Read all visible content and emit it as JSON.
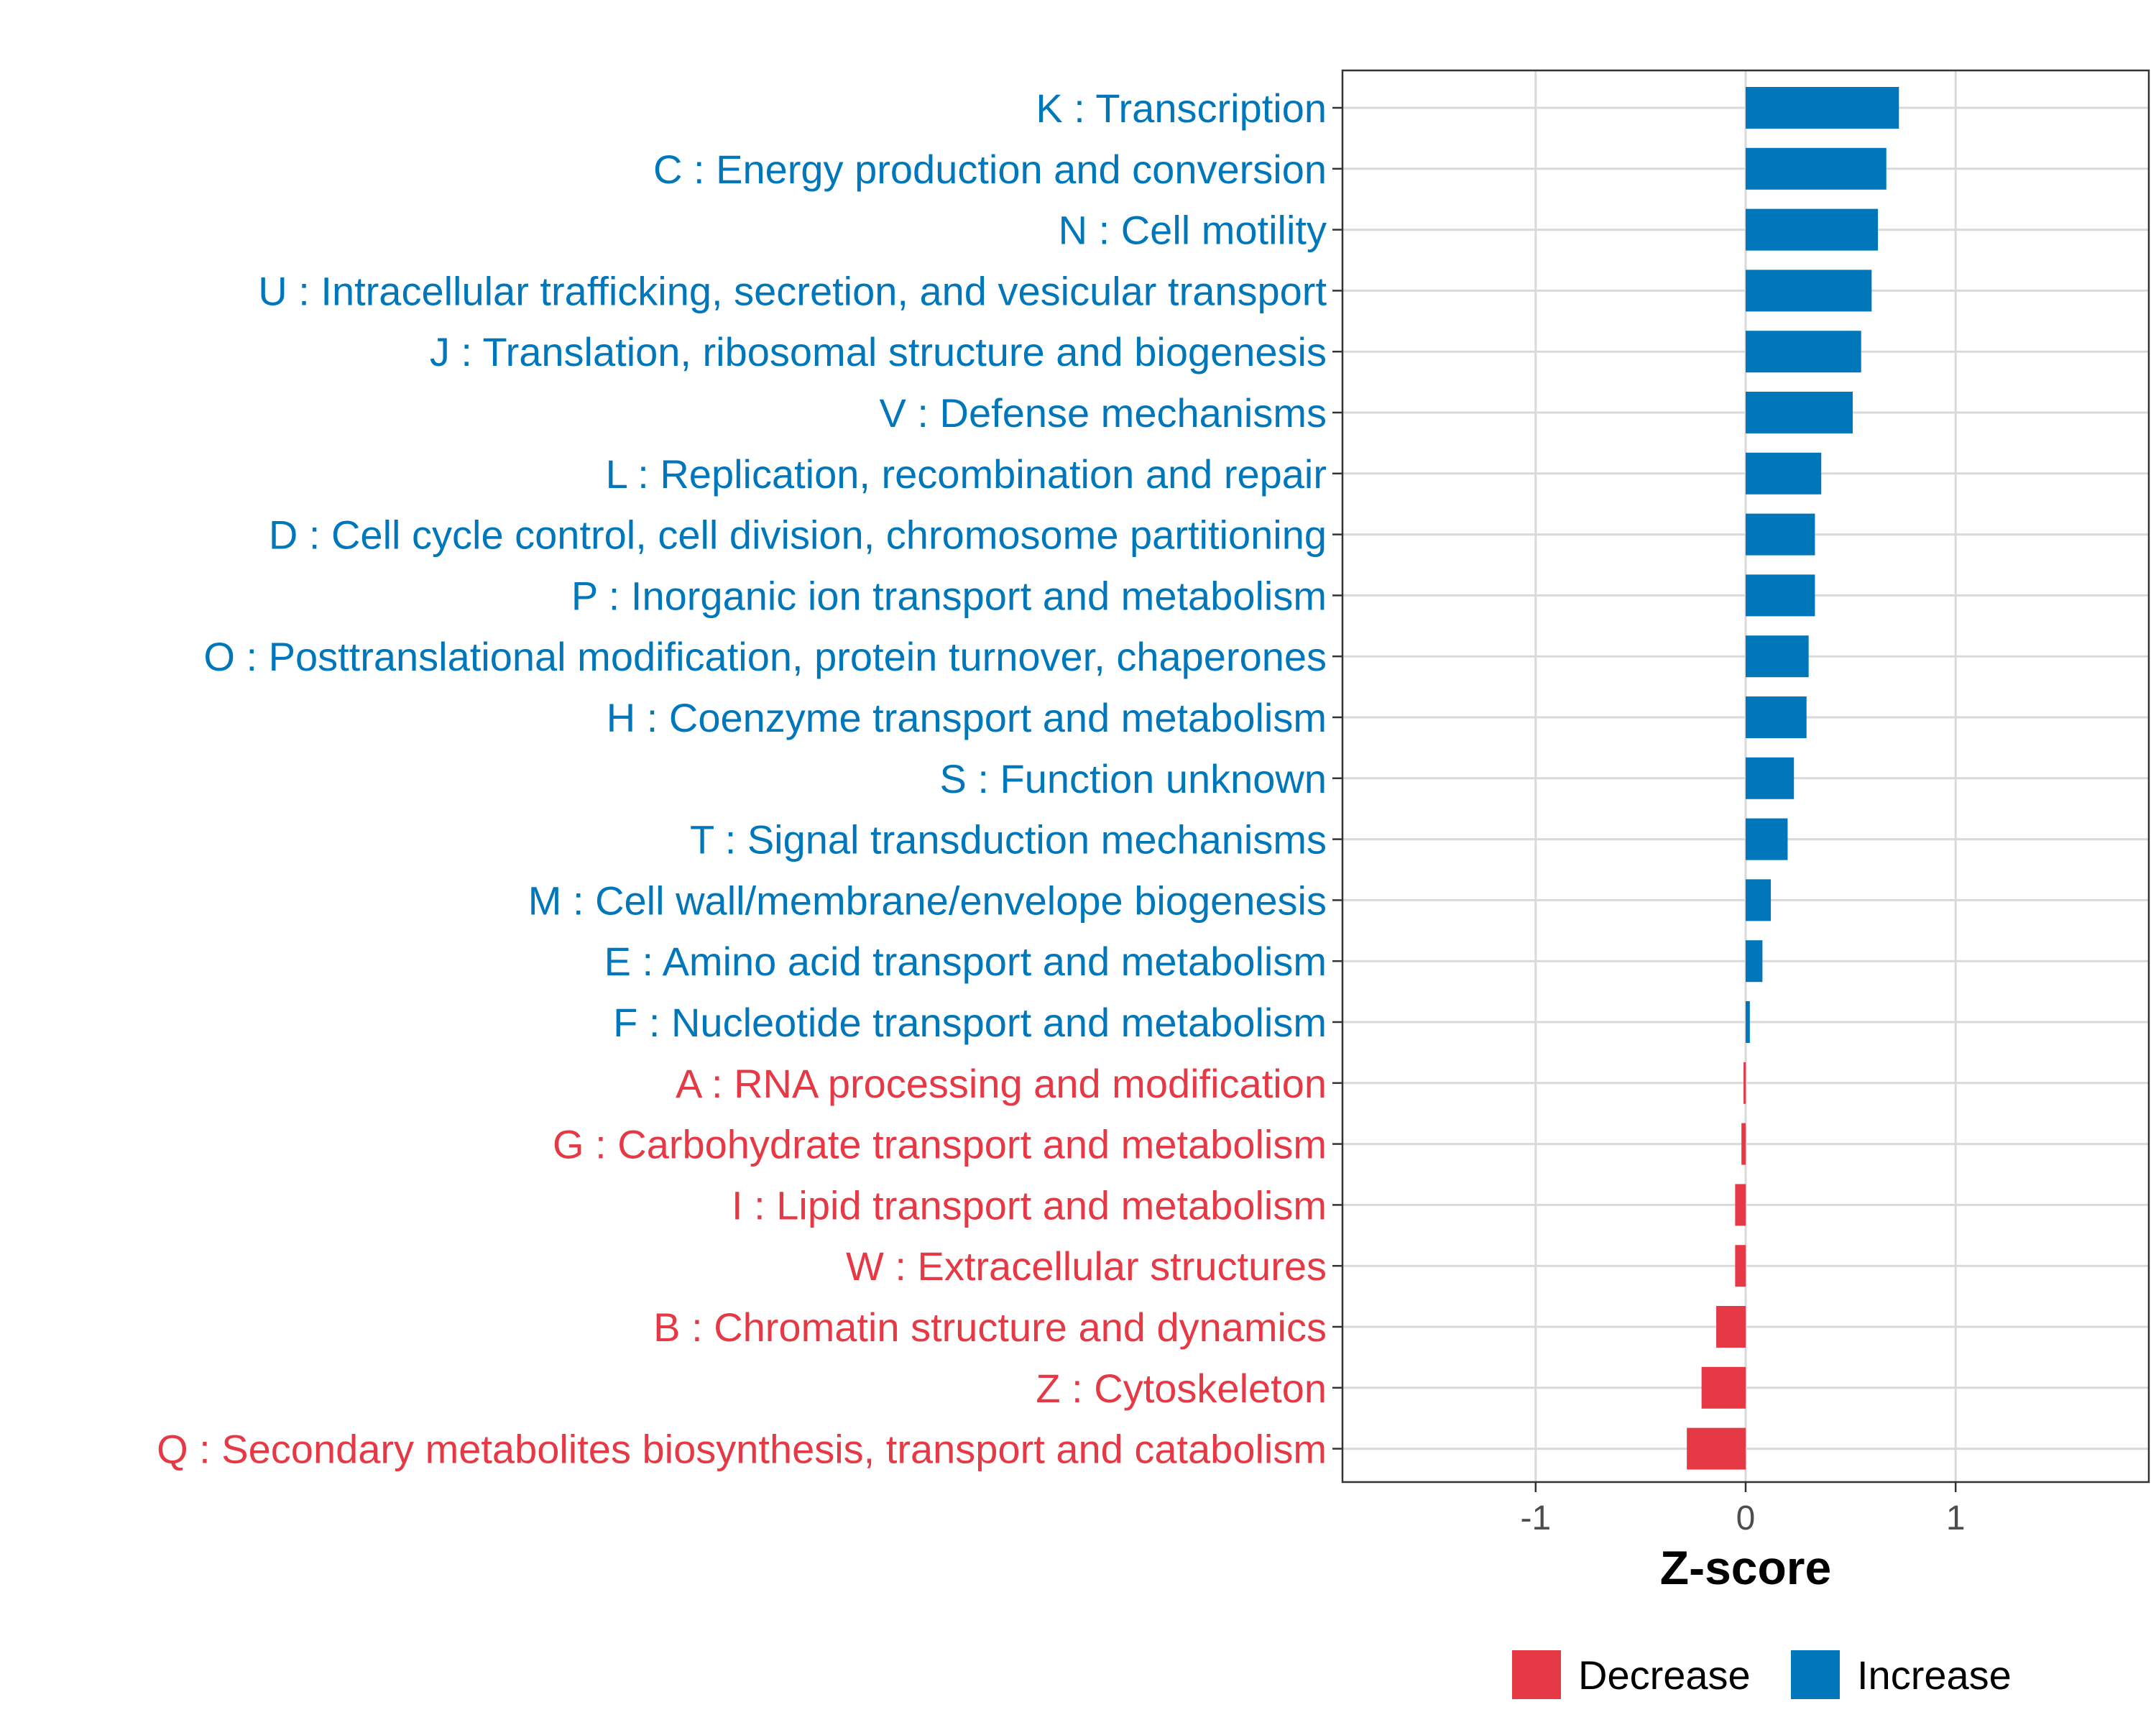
{
  "chart_data": {
    "type": "bar",
    "orientation": "horizontal",
    "title": "",
    "xlabel": "Z-score",
    "ylabel": "",
    "xlim": [
      -1.92,
      1.92
    ],
    "xticks": [
      -1,
      0,
      1
    ],
    "xtick_labels": [
      "-1",
      "0",
      "1"
    ],
    "grid": true,
    "legend_position": "bottom",
    "colors": {
      "Decrease": "#e63946",
      "Increase": "#0077bb",
      "grid": "#d9d9d9",
      "panel_border": "#333333"
    },
    "legend": [
      {
        "key": "Decrease",
        "label": "Decrease"
      },
      {
        "key": "Increase",
        "label": "Increase"
      }
    ],
    "categories": [
      "K : Transcription",
      "C : Energy production and conversion",
      "N : Cell motility",
      "U : Intracellular trafficking, secretion, and vesicular transport",
      "J : Translation, ribosomal structure and biogenesis",
      "V : Defense mechanisms",
      "L : Replication, recombination and repair",
      "D : Cell cycle control, cell division, chromosome partitioning",
      "P : Inorganic ion transport and metabolism",
      "O : Posttranslational modification, protein turnover, chaperones",
      "H : Coenzyme transport and metabolism",
      "S : Function unknown",
      "T : Signal transduction mechanisms",
      "M : Cell wall/membrane/envelope biogenesis",
      "E : Amino acid transport and metabolism",
      "F : Nucleotide transport and metabolism",
      "A : RNA processing and modification",
      "G : Carbohydrate transport and metabolism",
      "I : Lipid transport and metabolism",
      "W : Extracellular structures",
      "B : Chromatin structure and dynamics",
      "Z : Cytoskeleton",
      "Q : Secondary metabolites biosynthesis, transport and catabolism"
    ],
    "values": [
      0.73,
      0.67,
      0.63,
      0.6,
      0.55,
      0.51,
      0.36,
      0.33,
      0.33,
      0.3,
      0.29,
      0.23,
      0.2,
      0.12,
      0.08,
      0.02,
      -0.01,
      -0.02,
      -0.05,
      -0.05,
      -0.14,
      -0.21,
      -0.28
    ],
    "direction": [
      "Increase",
      "Increase",
      "Increase",
      "Increase",
      "Increase",
      "Increase",
      "Increase",
      "Increase",
      "Increase",
      "Increase",
      "Increase",
      "Increase",
      "Increase",
      "Increase",
      "Increase",
      "Increase",
      "Decrease",
      "Decrease",
      "Decrease",
      "Decrease",
      "Decrease",
      "Decrease",
      "Decrease"
    ]
  }
}
